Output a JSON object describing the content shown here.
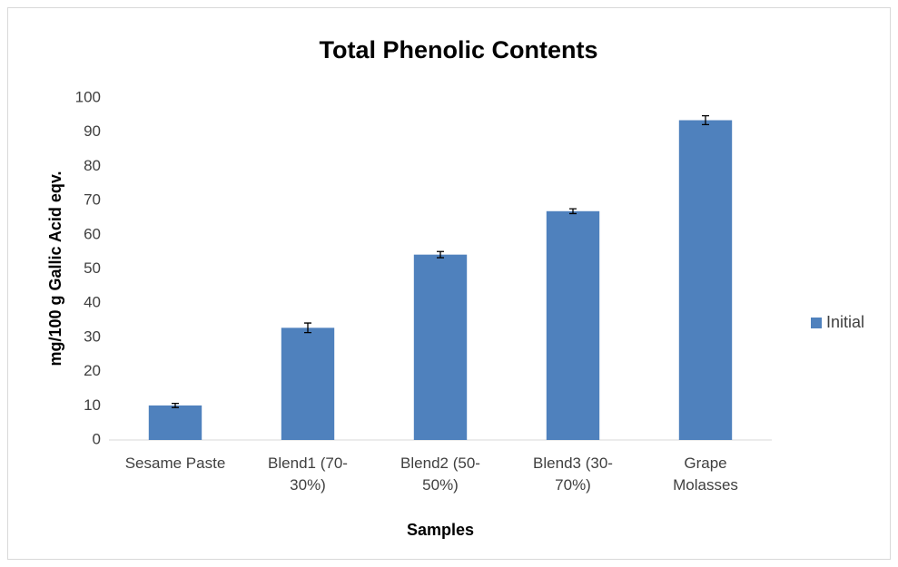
{
  "chart_data": {
    "type": "bar",
    "title": "Total Phenolic Contents",
    "x_label": "Samples",
    "y_label": "mg/100 g Gallic Acid eqv.",
    "categories": [
      "Sesame Paste",
      "Blend1 (70-30%)",
      "Blend2 (50-50%)",
      "Blend3 (30-70%)",
      "Grape Molasses"
    ],
    "series": [
      {
        "name": "Initial",
        "color": "#4f81bd",
        "values": [
          10.1,
          32.8,
          54.2,
          66.9,
          93.5
        ],
        "errors": [
          0.6,
          1.4,
          0.9,
          0.7,
          1.3
        ]
      }
    ],
    "ylim": [
      0,
      100
    ],
    "yticks": [
      0,
      10,
      20,
      30,
      40,
      50,
      60,
      70,
      80,
      90,
      100
    ],
    "grid": false,
    "legend": "right"
  }
}
